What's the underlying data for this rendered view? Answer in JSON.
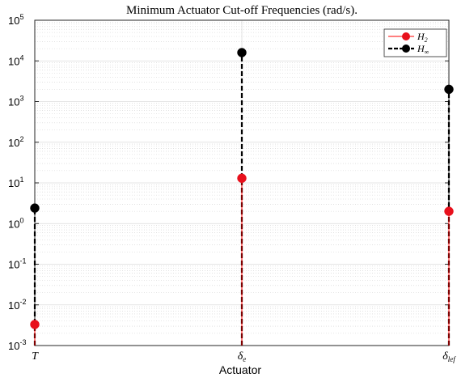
{
  "chart_data": {
    "type": "stem",
    "title": "Minimum Actuator Cut-off Frequencies (rad/s).",
    "xlabel": "Actuator",
    "ylabel": "",
    "yscale": "log",
    "ylim": [
      0.001,
      100000
    ],
    "yticks": [
      {
        "base": "10",
        "exp": "-3",
        "value": 0.001
      },
      {
        "base": "10",
        "exp": "-2",
        "value": 0.01
      },
      {
        "base": "10",
        "exp": "-1",
        "value": 0.1
      },
      {
        "base": "10",
        "exp": "0",
        "value": 1
      },
      {
        "base": "10",
        "exp": "1",
        "value": 10
      },
      {
        "base": "10",
        "exp": "2",
        "value": 100
      },
      {
        "base": "10",
        "exp": "3",
        "value": 1000
      },
      {
        "base": "10",
        "exp": "4",
        "value": 10000
      },
      {
        "base": "10",
        "exp": "5",
        "value": 100000
      }
    ],
    "categories": [
      {
        "main": "T",
        "sub": ""
      },
      {
        "main": "δ",
        "sub": "e"
      },
      {
        "main": "δ",
        "sub": "lef"
      }
    ],
    "grid": true,
    "legend_position": "top-right",
    "series": [
      {
        "name": "H",
        "name_sub": "2",
        "color": "#ff0000",
        "marker_color": "#e8101c",
        "line_style": "solid",
        "values": [
          0.0033,
          13,
          2.0
        ]
      },
      {
        "name": "H",
        "name_sub": "∞",
        "color": "#000000",
        "marker_color": "#000000",
        "line_style": "dashed",
        "values": [
          2.4,
          16000,
          2000
        ]
      }
    ]
  }
}
